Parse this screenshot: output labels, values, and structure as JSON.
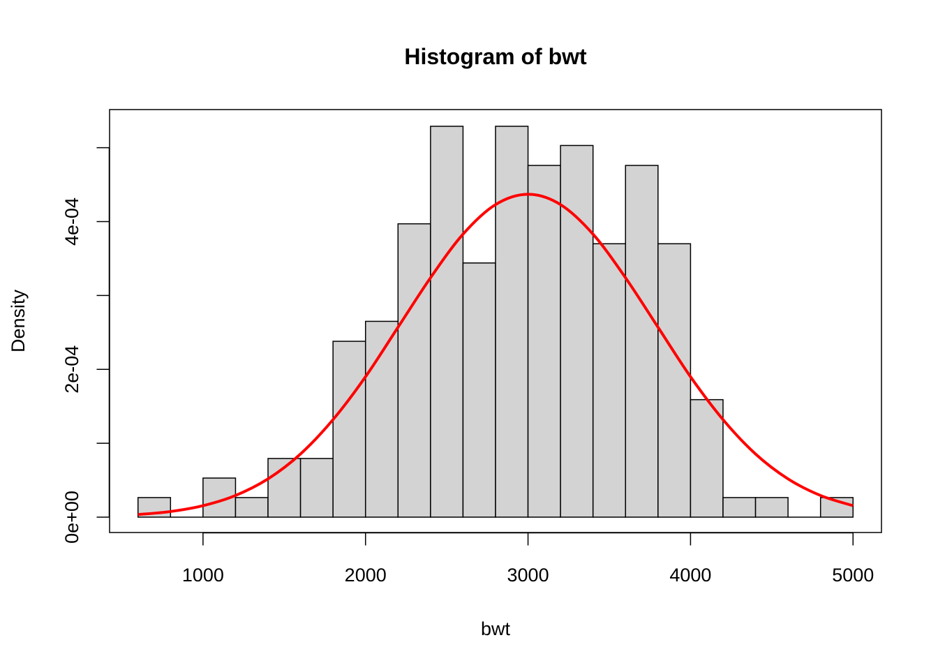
{
  "chart_data": {
    "type": "bar",
    "title": "Histogram of bwt",
    "xlabel": "bwt",
    "ylabel": "Density",
    "xlim": [
      425,
      5175
    ],
    "ylim": [
      -2.08e-05,
      0.0005516
    ],
    "x_ticks": [
      1000,
      2000,
      3000,
      4000,
      5000
    ],
    "x_tick_labels": [
      "1000",
      "2000",
      "3000",
      "4000",
      "5000"
    ],
    "y_ticks": [
      0,
      0.0001,
      0.0002,
      0.0003,
      0.0004,
      0.0005
    ],
    "y_tick_labels": [
      "0e+00",
      "",
      "2e-04",
      "",
      "4e-04",
      ""
    ],
    "bin_edges": [
      600,
      800,
      1000,
      1200,
      1400,
      1600,
      1800,
      2000,
      2200,
      2400,
      2600,
      2800,
      3000,
      3200,
      3400,
      3600,
      3800,
      4000,
      4200,
      4400,
      4600,
      4800,
      5000
    ],
    "values": [
      2.65e-05,
      0,
      5.29e-05,
      2.65e-05,
      7.94e-05,
      7.94e-05,
      0.000238,
      0.000265,
      0.000397,
      0.000529,
      0.000344,
      0.000529,
      0.000476,
      0.000503,
      0.00037,
      0.000476,
      0.00037,
      0.000159,
      2.65e-05,
      2.65e-05,
      0,
      2.65e-05
    ],
    "bar_color": "#d3d3d3",
    "bar_border": "#000000",
    "curve": {
      "type": "line",
      "color": "#ff0000",
      "x": [
        600,
        800,
        1000,
        1200,
        1400,
        1600,
        1800,
        2000,
        2200,
        2400,
        2600,
        2800,
        3000,
        3200,
        3400,
        3600,
        3800,
        4000,
        4200,
        4400,
        4600,
        4800,
        5000
      ],
      "y": [
        3.5e-06,
        7.6e-06,
        1.55e-05,
        2.93e-05,
        5.18e-05,
        8.55e-05,
        0.000132,
        0.00019,
        0.000257,
        0.000324,
        0.000383,
        0.000423,
        0.000437,
        0.000423,
        0.000383,
        0.000324,
        0.000257,
        0.00019,
        0.000132,
        8.55e-05,
        5.18e-05,
        2.93e-05,
        1.55e-05
      ]
    }
  }
}
